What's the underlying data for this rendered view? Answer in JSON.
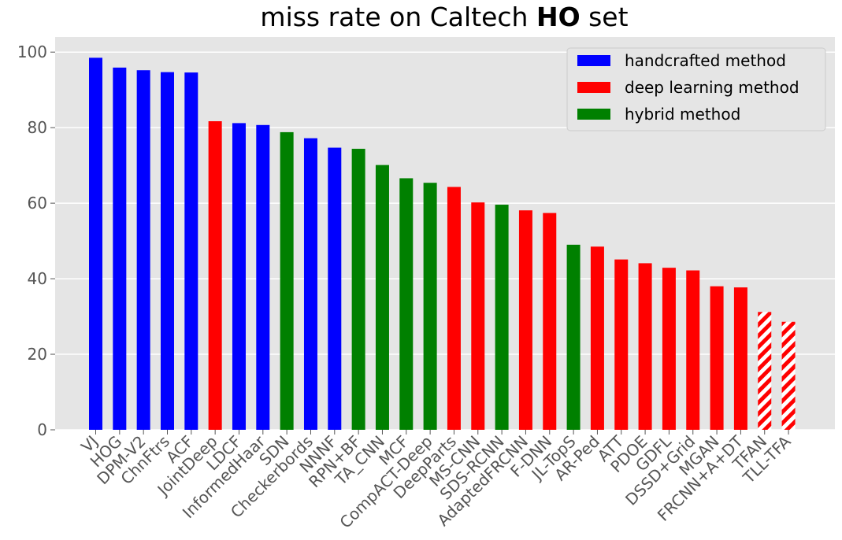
{
  "chart_data": {
    "type": "bar",
    "title_prefix": "miss rate on Caltech ",
    "title_bold": "HO",
    "title_suffix": " set",
    "xlabel": "",
    "ylabel": "",
    "ylim": [
      0,
      104
    ],
    "yticks": [
      0,
      20,
      40,
      60,
      80,
      100
    ],
    "grid": true,
    "legend_position": "top-right",
    "colors": {
      "handcrafted": "#0000ff",
      "deep": "#ff0000",
      "hybrid": "#008000",
      "background": "#e5e5e5",
      "grid": "#ffffff"
    },
    "legend": [
      {
        "key": "handcrafted",
        "label": "handcrafted method"
      },
      {
        "key": "deep",
        "label": "deep learning method"
      },
      {
        "key": "hybrid",
        "label": "hybrid method"
      }
    ],
    "categories": [
      "VJ",
      "HOG",
      "DPM-V2",
      "ChnFtrs",
      "ACF",
      "JointDeep",
      "LDCF",
      "InformedHaar",
      "SDN",
      "Checkerbords",
      "NNNF",
      "RPN+BF",
      "TA_CNN",
      "MCF",
      "CompACT-Deep",
      "DeepParts",
      "MS-CNN",
      "SDS-RCNN",
      "AdaptedFRCNN",
      "F-DNN",
      "JL-TopS",
      "AR-Ped",
      "ATT",
      "PDOE",
      "GDFL",
      "DSSD+Grid",
      "MGAN",
      "FRCNN+A+DT",
      "TFAN",
      "TLL-TFA"
    ],
    "values": [
      98.5,
      95.9,
      95.2,
      94.7,
      94.6,
      81.7,
      81.2,
      80.7,
      78.8,
      77.2,
      74.7,
      74.4,
      70.1,
      66.6,
      65.4,
      64.3,
      60.2,
      59.6,
      58.1,
      57.4,
      49.0,
      48.5,
      45.1,
      44.1,
      42.9,
      42.2,
      38.0,
      37.7,
      31.2,
      28.6
    ],
    "methods": [
      "handcrafted",
      "handcrafted",
      "handcrafted",
      "handcrafted",
      "handcrafted",
      "deep",
      "handcrafted",
      "handcrafted",
      "hybrid",
      "handcrafted",
      "handcrafted",
      "hybrid",
      "hybrid",
      "hybrid",
      "hybrid",
      "deep",
      "deep",
      "hybrid",
      "deep",
      "deep",
      "hybrid",
      "deep",
      "deep",
      "deep",
      "deep",
      "deep",
      "deep",
      "deep",
      "deep",
      "deep"
    ],
    "hatched": [
      false,
      false,
      false,
      false,
      false,
      false,
      false,
      false,
      false,
      false,
      false,
      false,
      false,
      false,
      false,
      false,
      false,
      false,
      false,
      false,
      false,
      false,
      false,
      false,
      false,
      false,
      false,
      false,
      true,
      true
    ]
  }
}
